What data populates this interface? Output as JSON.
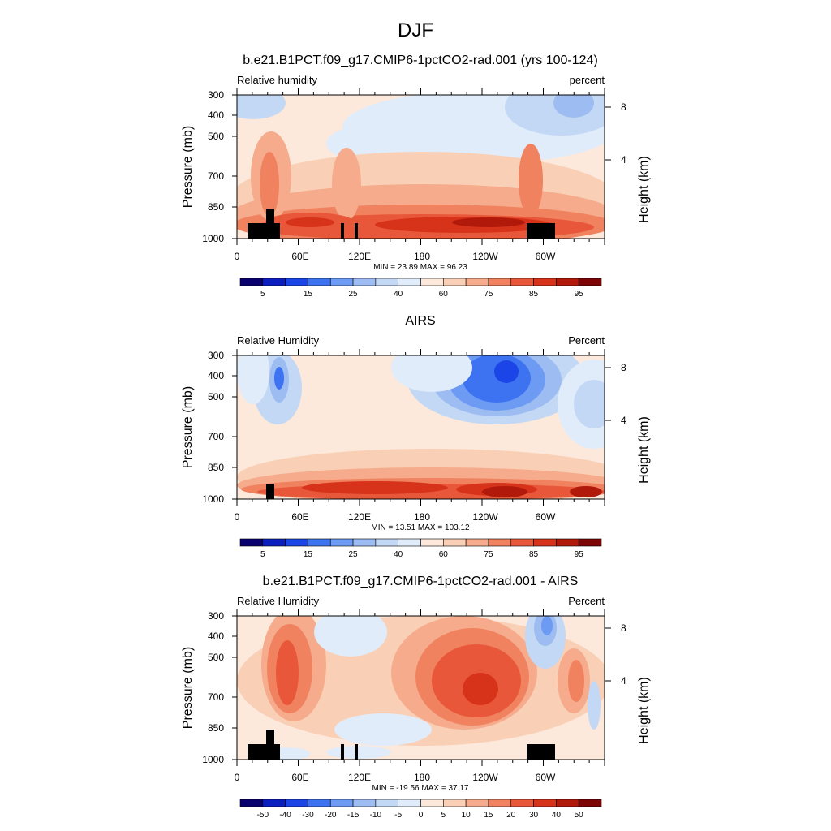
{
  "figure": {
    "title": "DJF"
  },
  "chart_data": [
    {
      "type": "heatmap",
      "title": "b.e21.B1PCT.f09_g17.CMIP6-1pctCO2-rad.001 (yrs 100-124)",
      "left_label": "Relative humidity",
      "right_label": "percent",
      "ylabel": "Pressure (mb)",
      "ylabel_right": "Height (km)",
      "x_ticks": [
        "0",
        "60E",
        "120E",
        "180",
        "120W",
        "60W"
      ],
      "y_ticks": [
        "300",
        "400",
        "500",
        "700",
        "850",
        "1000"
      ],
      "y_right_ticks": [
        "8",
        "4"
      ],
      "stats": "MIN =  23.89  MAX =  96.23",
      "colorbar": {
        "labels": [
          "5",
          "15",
          "25",
          "40",
          "60",
          "75",
          "85",
          "95"
        ],
        "colors": [
          "#08006e",
          "#0b1ec0",
          "#1b45e6",
          "#3d72f0",
          "#6d9af2",
          "#9dbdf2",
          "#c3d8f4",
          "#e0ecfa",
          "#fce9dc",
          "#f9cfb6",
          "#f5ab8c",
          "#f08260",
          "#e9573a",
          "#d7331b",
          "#b11a0a",
          "#7c0404"
        ]
      },
      "terrain": true
    },
    {
      "type": "heatmap",
      "title": "AIRS",
      "left_label": "Relative Humidity",
      "right_label": "Percent",
      "ylabel": "Pressure (mb)",
      "ylabel_right": "Height (km)",
      "x_ticks": [
        "0",
        "60E",
        "120E",
        "180",
        "120W",
        "60W"
      ],
      "y_ticks": [
        "300",
        "400",
        "500",
        "700",
        "850",
        "1000"
      ],
      "y_right_ticks": [
        "8",
        "4"
      ],
      "stats": "MIN =  13.51  MAX = 103.12",
      "colorbar": {
        "labels": [
          "5",
          "15",
          "25",
          "40",
          "60",
          "75",
          "85",
          "95"
        ],
        "colors": [
          "#08006e",
          "#0b1ec0",
          "#1b45e6",
          "#3d72f0",
          "#6d9af2",
          "#9dbdf2",
          "#c3d8f4",
          "#e0ecfa",
          "#fce9dc",
          "#f9cfb6",
          "#f5ab8c",
          "#f08260",
          "#e9573a",
          "#d7331b",
          "#b11a0a",
          "#7c0404"
        ]
      },
      "terrain": true
    },
    {
      "type": "heatmap",
      "title": "b.e21.B1PCT.f09_g17.CMIP6-1pctCO2-rad.001 - AIRS",
      "left_label": "Relative Humidity",
      "right_label": "Percent",
      "ylabel": "Pressure (mb)",
      "ylabel_right": "Height (km)",
      "x_ticks": [
        "0",
        "60E",
        "120E",
        "180",
        "120W",
        "60W"
      ],
      "y_ticks": [
        "300",
        "400",
        "500",
        "700",
        "850",
        "1000"
      ],
      "y_right_ticks": [
        "8",
        "4"
      ],
      "stats": "MIN = -19.56  MAX =  37.17",
      "colorbar": {
        "labels": [
          "-50",
          "-40",
          "-30",
          "-20",
          "-15",
          "-10",
          "-5",
          "0",
          "5",
          "10",
          "15",
          "20",
          "30",
          "40",
          "50"
        ],
        "colors": [
          "#08006e",
          "#0b1ec0",
          "#1b45e6",
          "#3d72f0",
          "#6d9af2",
          "#9dbdf2",
          "#c3d8f4",
          "#e0ecfa",
          "#fce9dc",
          "#f9cfb6",
          "#f5ab8c",
          "#f08260",
          "#e9573a",
          "#d7331b",
          "#b11a0a",
          "#7c0404"
        ]
      },
      "terrain": true
    }
  ]
}
